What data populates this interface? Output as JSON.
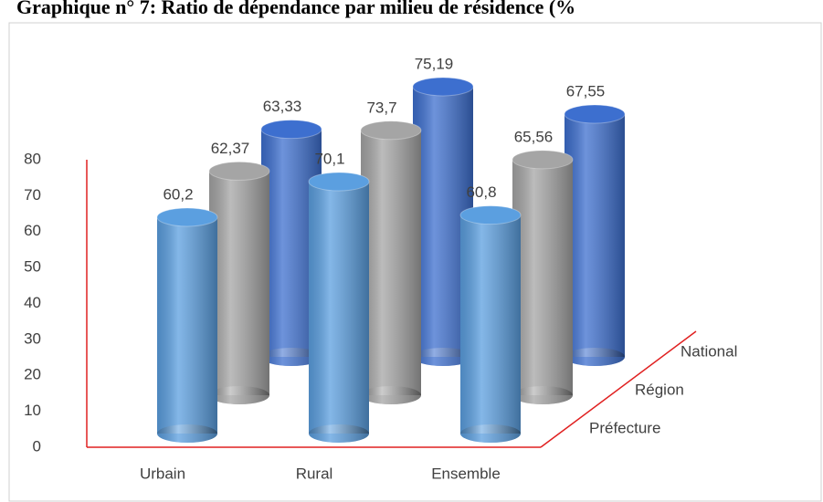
{
  "chart_data": {
    "type": "bar3d",
    "title": "Graphique n° 7: Ratio de dépendance par milieu de résidence (%",
    "categories": [
      "Urbain",
      "Rural",
      "Ensemble"
    ],
    "series": [
      {
        "name": "Préfecture",
        "color": "#5b9fe0",
        "values": [
          60.2,
          70.1,
          60.8
        ],
        "value_labels": [
          "60,2",
          "70,1",
          "60,8"
        ]
      },
      {
        "name": "Région",
        "color": "#a5a5a5",
        "values": [
          62.37,
          73.7,
          65.56
        ],
        "value_labels": [
          "62,37",
          "73,7",
          "65,56"
        ]
      },
      {
        "name": "National",
        "color": "#3d6fcf",
        "values": [
          63.33,
          75.19,
          67.55
        ],
        "value_labels": [
          "63,33",
          "75,19",
          "67,55"
        ]
      }
    ],
    "ylim": [
      0,
      80
    ],
    "yticks": [
      0,
      10,
      20,
      30,
      40,
      50,
      60,
      70,
      80
    ]
  }
}
